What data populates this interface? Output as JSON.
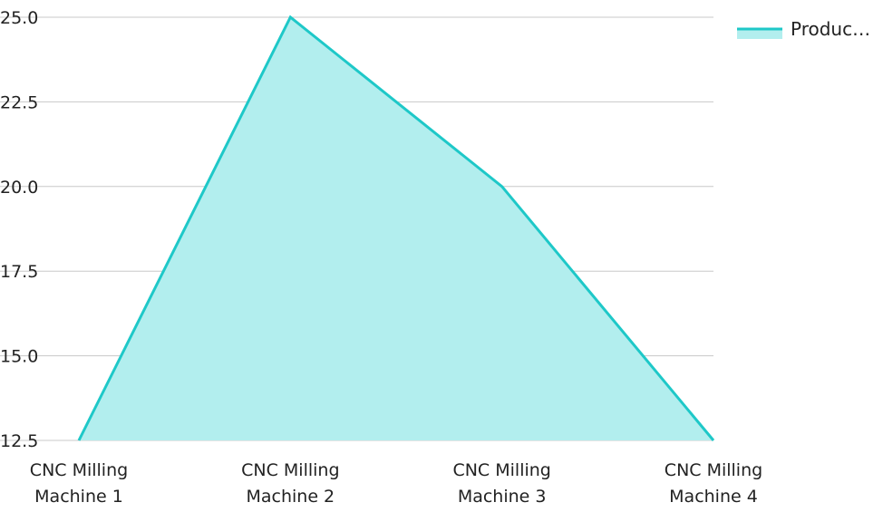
{
  "chart_data": {
    "type": "area",
    "title": "",
    "xlabel": "",
    "ylabel": "",
    "categories": [
      [
        "CNC Milling",
        "Machine 1"
      ],
      [
        "CNC Milling",
        "Machine 2"
      ],
      [
        "CNC Milling",
        "Machine 3"
      ],
      [
        "CNC Milling",
        "Machine 4"
      ]
    ],
    "series": [
      {
        "name": "Produc…",
        "values": [
          12.5,
          25.0,
          20.0,
          12.5
        ],
        "line_color": "#1ec8c8",
        "fill_color": "#b2eeee"
      }
    ],
    "ylim": [
      12.5,
      25.0
    ],
    "yticks": [
      "12.5",
      "15.0",
      "17.5",
      "20.0",
      "22.5",
      "25.0"
    ],
    "grid": true,
    "grid_color": "#c8c8c8",
    "legend_position": "top-right"
  }
}
